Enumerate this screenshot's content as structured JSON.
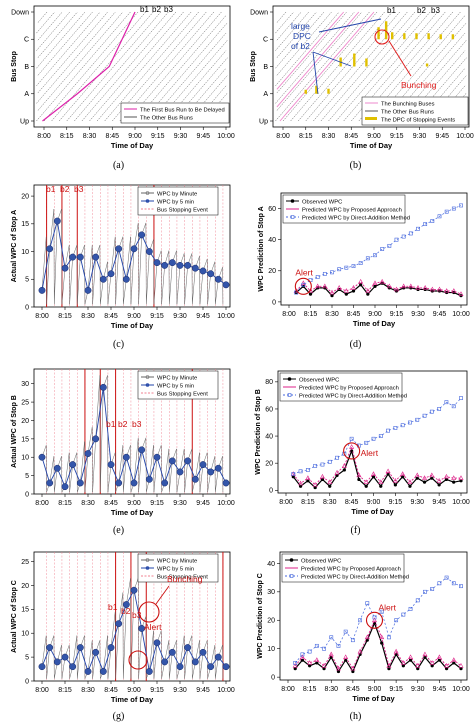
{
  "x_ticks": [
    "8:00",
    "8:15",
    "8:30",
    "8:45",
    "9:00",
    "9:15",
    "9:30",
    "9:45",
    "10:00"
  ],
  "x_label": "Time of Day",
  "captions": [
    "(a)",
    "(b)",
    "(c)",
    "(d)",
    "(e)",
    "(f)",
    "(g)",
    "(h)"
  ],
  "chart_data": [
    {
      "panel": "a",
      "type": "line",
      "ylabel": "Bus Stop",
      "y_categories": [
        "Up",
        "A",
        "B",
        "C",
        "Down"
      ],
      "xlim": [
        "8:00",
        "10:00"
      ],
      "legend": [
        "The First Bus Run to Be Delayed",
        "The Other Bus Runs"
      ],
      "annotations": [
        "b1",
        "b2",
        "b3"
      ],
      "series": [
        {
          "name": "The First Bus Run to Be Delayed",
          "color": "#dd22aa",
          "x": [
            "7:59",
            "8:22",
            "8:43",
            "9:00"
          ],
          "y": [
            "Up",
            "A",
            "B",
            "Down"
          ]
        },
        {
          "name": "The Other Bus Runs",
          "color": "#333333",
          "runs": [
            [
              "8:03",
              "9:05"
            ],
            [
              "8:08",
              "9:10"
            ],
            [
              "8:13",
              "9:15"
            ],
            [
              "8:18",
              "9:20"
            ],
            [
              "8:23",
              "9:25"
            ],
            [
              "8:28",
              "9:30"
            ],
            [
              "8:33",
              "9:35"
            ],
            [
              "8:38",
              "9:40"
            ],
            [
              "8:43",
              "9:45"
            ],
            [
              "8:48",
              "9:50"
            ],
            [
              "8:53",
              "9:55"
            ],
            [
              "8:58",
              "10:00"
            ]
          ]
        }
      ]
    },
    {
      "panel": "b",
      "type": "line",
      "ylabel": "Bus Stop",
      "y_categories": [
        "Up",
        "A",
        "B",
        "C",
        "Down"
      ],
      "legend": [
        "The Bunching Buses",
        "The Other Bus Runs",
        "The DPC of Stopping Events"
      ],
      "annotations": [
        "large",
        "DPC",
        "of b2",
        "b1",
        "b2",
        "b3",
        "Bunching"
      ]
    },
    {
      "panel": "c",
      "type": "line",
      "ylabel": "Actual WPC of Stop A",
      "y_ticks": [
        0,
        5,
        10,
        15,
        20
      ],
      "ylim": [
        0,
        22
      ],
      "legend": [
        "WPC by Minute",
        "WPC by 5 min",
        "Bus Stopping Event"
      ],
      "annotations": [
        "b1",
        "b2",
        "b3"
      ],
      "series": [
        {
          "name": "WPC by 5 min",
          "color": "#2244aa",
          "x": [
            "8:00",
            "8:05",
            "8:10",
            "8:15",
            "8:20",
            "8:25",
            "8:30",
            "8:35",
            "8:40",
            "8:45",
            "8:50",
            "8:55",
            "9:00",
            "9:05",
            "9:10",
            "9:15",
            "9:20",
            "9:25",
            "9:30",
            "9:35",
            "9:40",
            "9:45",
            "9:50",
            "9:55",
            "10:00"
          ],
          "y": [
            3,
            10.5,
            15.5,
            7,
            9,
            9,
            3,
            9,
            5,
            6,
            10.5,
            5,
            10.5,
            13,
            10,
            8,
            7.5,
            8,
            7.5,
            7.5,
            7,
            6.5,
            6,
            5,
            4
          ]
        }
      ]
    },
    {
      "panel": "d",
      "type": "line",
      "ylabel": "WPC Prediction of Stop A",
      "y_ticks": [
        0,
        20,
        40,
        60
      ],
      "ylim": [
        -2,
        70
      ],
      "legend": [
        "Observed WPC",
        "Predicted WPC by Proposed Approach",
        "Predicted WPC by Direct-Addition Method"
      ],
      "annotations": [
        "Alert"
      ],
      "series": [
        {
          "name": "Observed WPC",
          "color": "#000000",
          "x": [
            "8:05",
            "8:10",
            "8:15",
            "8:20",
            "8:25",
            "8:30",
            "8:35",
            "8:40",
            "8:45",
            "8:50",
            "8:55",
            "9:00",
            "9:05",
            "9:10",
            "9:15",
            "9:20",
            "9:25",
            "9:30",
            "9:35",
            "9:40",
            "9:45",
            "9:50",
            "9:55",
            "10:00"
          ],
          "y": [
            6,
            10,
            5,
            9,
            9,
            4,
            8,
            5,
            7,
            11,
            5,
            10,
            12,
            9,
            7,
            9,
            9,
            8,
            8,
            7,
            7,
            6,
            6,
            4
          ]
        },
        {
          "name": "Predicted WPC by Proposed Approach",
          "color": "#dd2288",
          "x": [
            "8:05",
            "8:10",
            "8:15",
            "8:20",
            "8:25",
            "8:30",
            "8:35",
            "8:40",
            "8:45",
            "8:50",
            "8:55",
            "9:00",
            "9:05",
            "9:10",
            "9:15",
            "9:20",
            "9:25",
            "9:30",
            "9:35",
            "9:40",
            "9:45",
            "9:50",
            "9:55",
            "10:00"
          ],
          "y": [
            7,
            12,
            7,
            10,
            10,
            6,
            9,
            7,
            9,
            13,
            7,
            12,
            13,
            10,
            8,
            10,
            10,
            9,
            9,
            8,
            8,
            7,
            7,
            5
          ]
        },
        {
          "name": "Predicted WPC by Direct-Addition Method",
          "color": "#4466dd",
          "x": [
            "8:05",
            "8:10",
            "8:15",
            "8:20",
            "8:25",
            "8:30",
            "8:35",
            "8:40",
            "8:45",
            "8:50",
            "8:55",
            "9:00",
            "9:05",
            "9:10",
            "9:15",
            "9:20",
            "9:25",
            "9:30",
            "9:35",
            "9:40",
            "9:45",
            "9:50",
            "9:55",
            "10:00"
          ],
          "y": [
            6,
            11,
            14,
            16,
            18,
            19,
            21,
            22,
            23,
            25,
            28,
            30,
            34,
            36,
            40,
            42,
            44,
            47,
            50,
            52,
            55,
            58,
            60,
            62
          ]
        }
      ]
    },
    {
      "panel": "e",
      "type": "line",
      "ylabel": "Actual WPC of Stop B",
      "y_ticks": [
        0,
        5,
        10,
        15,
        20,
        25,
        30
      ],
      "ylim": [
        0,
        34
      ],
      "legend": [
        "WPC by Minute",
        "WPC by 5 min",
        "Bus Stopping Event"
      ],
      "annotations": [
        "b1",
        "b2",
        "b3"
      ],
      "series": [
        {
          "name": "WPC by 5 min",
          "color": "#2244aa",
          "x": [
            "8:00",
            "8:05",
            "8:10",
            "8:15",
            "8:20",
            "8:25",
            "8:30",
            "8:35",
            "8:40",
            "8:45",
            "8:50",
            "8:55",
            "9:00",
            "9:05",
            "9:10",
            "9:15",
            "9:20",
            "9:25",
            "9:30",
            "9:35",
            "9:40",
            "9:45",
            "9:50",
            "9:55",
            "10:00"
          ],
          "y": [
            10,
            3,
            7,
            2,
            8,
            3,
            11,
            15,
            29,
            8,
            3,
            10,
            3,
            12,
            4,
            10,
            3,
            9,
            6,
            9,
            4,
            8,
            6,
            7,
            3
          ]
        }
      ]
    },
    {
      "panel": "f",
      "type": "line",
      "ylabel": "WPC Prediction of Stop B",
      "y_ticks": [
        0,
        20,
        40,
        60,
        80
      ],
      "ylim": [
        -2,
        88
      ],
      "legend": [
        "Observed WPC",
        "Predicted WPC by Proposed Approach",
        "Predicted WPC by Direct-Addition Method"
      ],
      "annotations": [
        "Alert"
      ],
      "series": [
        {
          "name": "Observed WPC",
          "color": "#000000",
          "x": [
            "8:05",
            "8:10",
            "8:15",
            "8:20",
            "8:25",
            "8:30",
            "8:35",
            "8:40",
            "8:45",
            "8:50",
            "8:55",
            "9:00",
            "9:05",
            "9:10",
            "9:15",
            "9:20",
            "9:25",
            "9:30",
            "9:35",
            "9:40",
            "9:45",
            "9:50",
            "9:55",
            "10:00"
          ],
          "y": [
            10,
            3,
            7,
            2,
            8,
            3,
            11,
            15,
            29,
            8,
            3,
            10,
            3,
            12,
            4,
            10,
            3,
            9,
            6,
            9,
            4,
            8,
            6,
            7
          ]
        },
        {
          "name": "Predicted WPC by Proposed Approach",
          "color": "#dd2288",
          "x": [
            "8:05",
            "8:10",
            "8:15",
            "8:20",
            "8:25",
            "8:30",
            "8:35",
            "8:40",
            "8:45",
            "8:50",
            "8:55",
            "9:00",
            "9:05",
            "9:10",
            "9:15",
            "9:20",
            "9:25",
            "9:30",
            "9:35",
            "9:40",
            "9:45",
            "9:50",
            "9:55",
            "10:00"
          ],
          "y": [
            12,
            5,
            9,
            4,
            10,
            6,
            13,
            18,
            32,
            11,
            6,
            12,
            6,
            14,
            7,
            12,
            6,
            11,
            9,
            11,
            7,
            10,
            9,
            9
          ]
        },
        {
          "name": "Predicted WPC by Direct-Addition Method",
          "color": "#4466dd",
          "x": [
            "8:05",
            "8:10",
            "8:15",
            "8:20",
            "8:25",
            "8:30",
            "8:35",
            "8:40",
            "8:45",
            "8:50",
            "8:55",
            "9:00",
            "9:05",
            "9:10",
            "9:15",
            "9:20",
            "9:25",
            "9:30",
            "9:35",
            "9:40",
            "9:45",
            "9:50",
            "9:55",
            "10:00"
          ],
          "y": [
            12,
            14,
            15,
            18,
            19,
            21,
            24,
            27,
            38,
            33,
            35,
            38,
            40,
            44,
            46,
            48,
            50,
            52,
            55,
            58,
            60,
            65,
            62,
            68
          ]
        }
      ]
    },
    {
      "panel": "g",
      "type": "line",
      "ylabel": "Actual WPC of Stop C",
      "y_ticks": [
        0,
        5,
        10,
        15,
        20,
        25
      ],
      "ylim": [
        0,
        27
      ],
      "legend": [
        "WPC by Minute",
        "WPC by 5 min",
        "Bus Stopping Event"
      ],
      "annotations": [
        "Bunching",
        "b1",
        "b2",
        "b3",
        "Alert"
      ],
      "series": [
        {
          "name": "WPC by 5 min",
          "color": "#2244aa",
          "x": [
            "8:00",
            "8:05",
            "8:10",
            "8:15",
            "8:20",
            "8:25",
            "8:30",
            "8:35",
            "8:40",
            "8:45",
            "8:50",
            "8:55",
            "9:00",
            "9:05",
            "9:10",
            "9:15",
            "9:20",
            "9:25",
            "9:30",
            "9:35",
            "9:40",
            "9:45",
            "9:50",
            "9:55",
            "10:00"
          ],
          "y": [
            3,
            7,
            4,
            5,
            3,
            7,
            2,
            6,
            2,
            7,
            12,
            16,
            19,
            11,
            2,
            8,
            4,
            6,
            3,
            7,
            4,
            6,
            3,
            5,
            3
          ]
        }
      ]
    },
    {
      "panel": "h",
      "type": "line",
      "ylabel": "WPC Prediction of Stop C",
      "y_ticks": [
        0,
        10,
        20,
        30,
        40
      ],
      "ylim": [
        -1,
        44
      ],
      "legend": [
        "Observed WPC",
        "Predicted WPC by Proposed Approach",
        "Predicted WPC by Direct-Addition Method"
      ],
      "annotations": [
        "Alert"
      ],
      "series": [
        {
          "name": "Observed WPC",
          "color": "#000000",
          "x": [
            "8:05",
            "8:10",
            "8:15",
            "8:20",
            "8:25",
            "8:30",
            "8:35",
            "8:40",
            "8:45",
            "8:50",
            "8:55",
            "9:00",
            "9:05",
            "9:10",
            "9:15",
            "9:20",
            "9:25",
            "9:30",
            "9:35",
            "9:40",
            "9:45",
            "9:50",
            "9:55",
            "10:00"
          ],
          "y": [
            3,
            6,
            4,
            5,
            3,
            7,
            2,
            6,
            2,
            8,
            13,
            19,
            12,
            3,
            8,
            4,
            6,
            3,
            7,
            4,
            6,
            3,
            5,
            3
          ]
        },
        {
          "name": "Predicted WPC by Proposed Approach",
          "color": "#dd2288",
          "x": [
            "8:05",
            "8:10",
            "8:15",
            "8:20",
            "8:25",
            "8:30",
            "8:35",
            "8:40",
            "8:45",
            "8:50",
            "8:55",
            "9:00",
            "9:05",
            "9:10",
            "9:15",
            "9:20",
            "9:25",
            "9:30",
            "9:35",
            "9:40",
            "9:45",
            "9:50",
            "9:55",
            "10:00"
          ],
          "y": [
            4,
            7,
            5,
            6,
            4,
            8,
            3,
            7,
            3,
            9,
            14,
            20,
            14,
            4,
            9,
            5,
            7,
            4,
            8,
            5,
            7,
            4,
            6,
            4
          ]
        },
        {
          "name": "Predicted WPC by Direct-Addition Method",
          "color": "#4466dd",
          "x": [
            "8:05",
            "8:10",
            "8:15",
            "8:20",
            "8:25",
            "8:30",
            "8:35",
            "8:40",
            "8:45",
            "8:50",
            "8:55",
            "9:00",
            "9:05",
            "9:10",
            "9:15",
            "9:20",
            "9:25",
            "9:30",
            "9:35",
            "9:40",
            "9:45",
            "9:50",
            "9:55",
            "10:00"
          ],
          "y": [
            5,
            8,
            9,
            11,
            10,
            14,
            11,
            16,
            13,
            20,
            26,
            21,
            23,
            14,
            20,
            22,
            24,
            27,
            30,
            31,
            33,
            35,
            33,
            32
          ]
        }
      ]
    }
  ]
}
